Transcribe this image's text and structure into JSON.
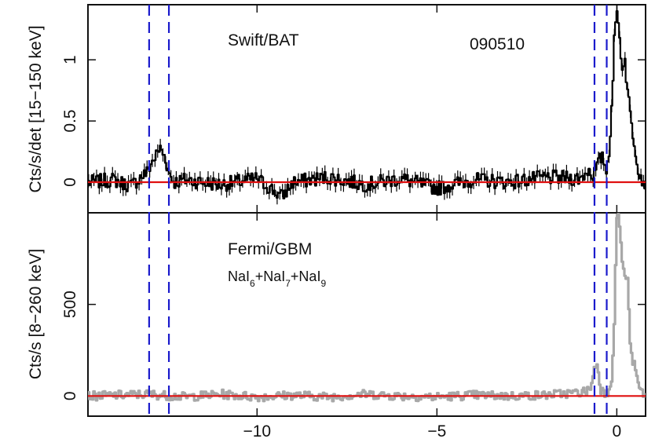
{
  "chart_data": {
    "type": "line",
    "shared_x": {
      "xlim": [
        -14.7,
        0.8
      ],
      "ticks": [
        -10,
        -5,
        0
      ],
      "tick_labels": [
        "−10",
        "−5",
        "0"
      ]
    },
    "vertical_markers": [
      -13.0,
      -12.45,
      -0.62,
      -0.28
    ],
    "marker_color": "#1a1acc",
    "baseline_color": "#e01010",
    "panels": [
      {
        "name": "top",
        "ylabel": "Cts/s/det [15−150 keV]",
        "ylim": [
          -0.25,
          1.45
        ],
        "yticks": [
          0,
          0.5,
          1
        ],
        "ytick_labels": [
          "0",
          "0.5",
          "1"
        ],
        "annotations": {
          "instrument": "Swift/BAT",
          "burst": "090510"
        },
        "series_color": "#000000",
        "x": [
          -14.6,
          -14.0,
          -13.5,
          -13.2,
          -13.05,
          -12.95,
          -12.8,
          -12.7,
          -12.55,
          -12.45,
          -12.3,
          -12.0,
          -11.0,
          -10.0,
          -9.3,
          -9.0,
          -8.0,
          -7.0,
          -6.0,
          -5.0,
          -4.0,
          -3.0,
          -2.0,
          -1.0,
          -0.8,
          -0.65,
          -0.55,
          -0.45,
          -0.35,
          -0.28,
          -0.2,
          -0.12,
          -0.06,
          0.0,
          0.05,
          0.1,
          0.15,
          0.22,
          0.3,
          0.4,
          0.5,
          0.6,
          0.7,
          0.8
        ],
        "y": [
          0.0,
          0.02,
          -0.03,
          0.05,
          0.08,
          0.15,
          0.22,
          0.28,
          0.2,
          0.08,
          0.0,
          0.02,
          -0.02,
          0.03,
          -0.12,
          0.0,
          0.04,
          -0.02,
          0.03,
          -0.05,
          0.02,
          0.0,
          0.04,
          0.03,
          0.1,
          0.06,
          0.12,
          0.2,
          0.18,
          0.08,
          0.3,
          0.75,
          1.2,
          1.38,
          1.35,
          1.05,
          0.95,
          1.02,
          0.75,
          0.5,
          0.3,
          0.12,
          0.02,
          0.0
        ],
        "noise_amplitude": 0.06
      },
      {
        "name": "bottom",
        "ylabel": "Cts/s [8−260 keV]",
        "ylim": [
          -110,
          1000
        ],
        "yticks": [
          0,
          500
        ],
        "ytick_labels": [
          "0",
          "500"
        ],
        "annotations": {
          "instrument": "Fermi/GBM",
          "detectors": "NaI6+NaI7+NaI9"
        },
        "series_color": "#a8a8a8",
        "x": [
          -14.6,
          -13.0,
          -12.0,
          -11.0,
          -10.0,
          -9.0,
          -8.0,
          -7.0,
          -6.0,
          -5.0,
          -4.0,
          -3.0,
          -2.0,
          -1.0,
          -0.8,
          -0.7,
          -0.62,
          -0.55,
          -0.5,
          -0.45,
          -0.35,
          -0.28,
          -0.2,
          -0.12,
          -0.05,
          0.0,
          0.05,
          0.1,
          0.15,
          0.25,
          0.3,
          0.35,
          0.4,
          0.5,
          0.6,
          0.7,
          0.8
        ],
        "y": [
          0,
          10,
          -5,
          10,
          -5,
          5,
          -5,
          10,
          0,
          -5,
          5,
          0,
          5,
          20,
          30,
          60,
          150,
          180,
          120,
          40,
          20,
          10,
          50,
          120,
          500,
          990,
          980,
          900,
          720,
          650,
          640,
          400,
          220,
          160,
          60,
          20,
          0
        ],
        "noise_amplitude": 25
      }
    ]
  }
}
